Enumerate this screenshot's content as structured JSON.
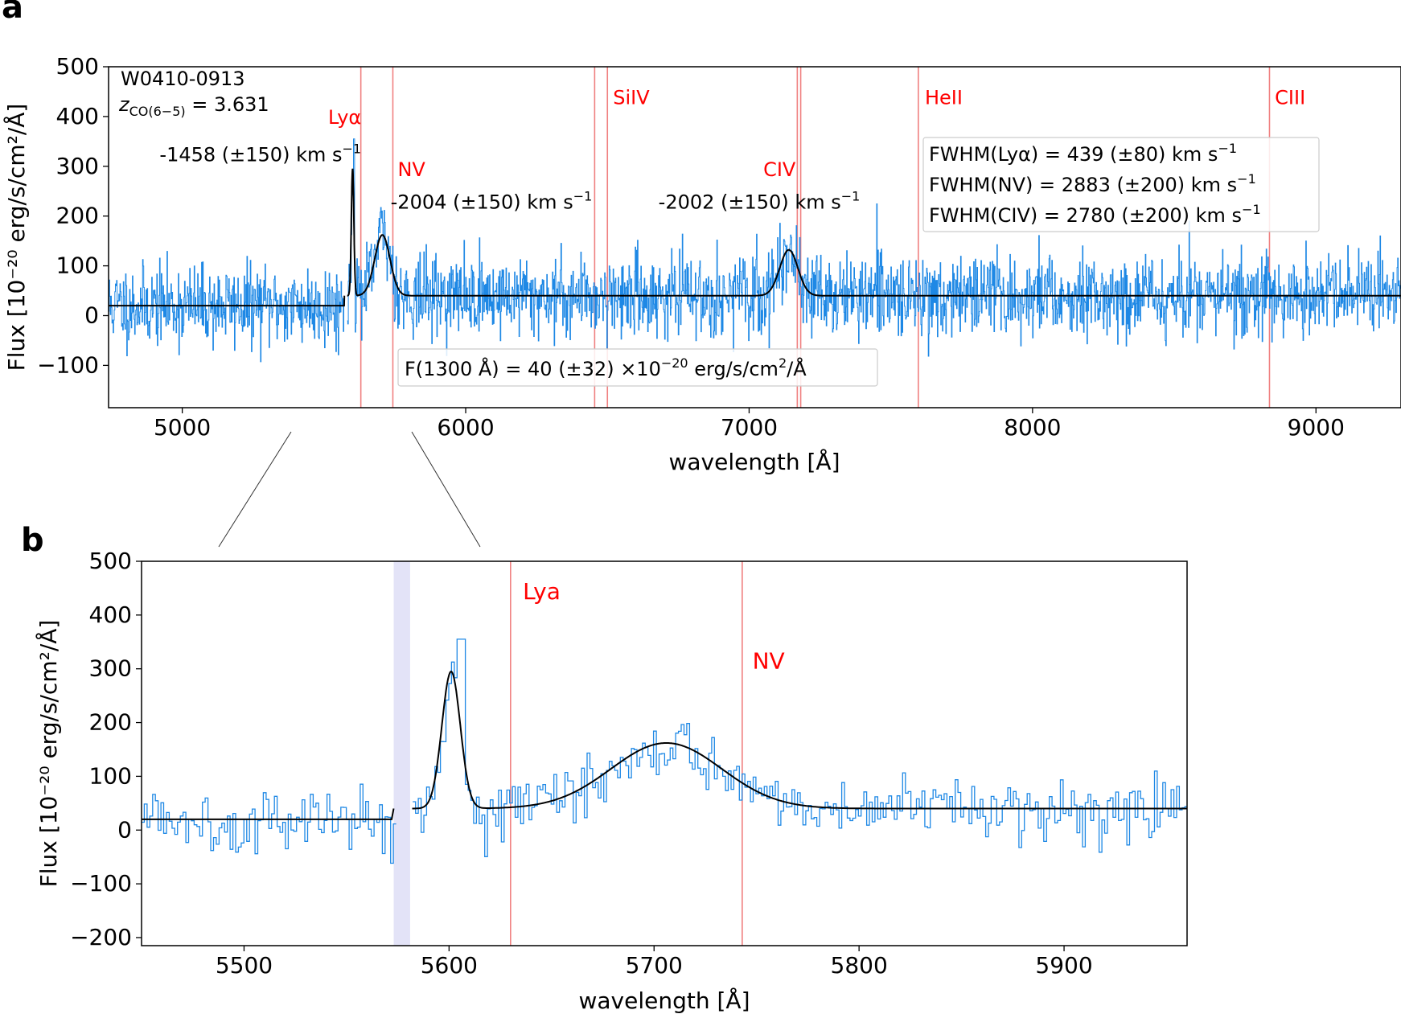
{
  "panels": [
    {
      "letter": "a",
      "type": "line",
      "xlabel": "wavelength [Å]",
      "ylabel": "Flux [10⁻²⁰ erg/s/cm²/Å]",
      "xlim": [
        4740,
        9300
      ],
      "ylim": [
        -185,
        500
      ],
      "xticks": [
        5000,
        6000,
        7000,
        8000,
        9000
      ],
      "yticks": [
        -100,
        0,
        100,
        200,
        300,
        400,
        500
      ],
      "source_label": "W0410-0913",
      "redshift_label": "z",
      "redshift_subscript": "CO(6−5)",
      "redshift_value": " = 3.631",
      "line_markers": [
        {
          "name": "Lyα",
          "x": 5630
        },
        {
          "name": "NV",
          "x": 5743
        },
        {
          "name": "SiIV",
          "x": 6455
        },
        {
          "name": "SiIV-2",
          "x": 6500
        },
        {
          "name": "CIV",
          "x": 7170
        },
        {
          "name": "CIV-2",
          "x": 7182
        },
        {
          "name": "HeII",
          "x": 7597
        },
        {
          "name": "CIII",
          "x": 8836
        }
      ],
      "marker_labels": [
        {
          "text": "Lyα",
          "x": 5630,
          "y": 385
        },
        {
          "text": "NV",
          "x": 5760,
          "y": 280
        },
        {
          "text": "SiIV",
          "x": 6520,
          "y": 425
        },
        {
          "text": "CIV",
          "x": 7050,
          "y": 280
        },
        {
          "text": "HeII",
          "x": 7620,
          "y": 425
        },
        {
          "text": "CIII",
          "x": 8855,
          "y": 425
        }
      ],
      "velocity_labels": [
        {
          "text": "-1458 (±150) km s",
          "sup": "−1",
          "x": 4920,
          "y": 310
        },
        {
          "text": "-2004 (±150) km s",
          "sup": "−1",
          "x": 5735,
          "y": 215
        },
        {
          "text": "-2002 (±150) km s",
          "sup": "−1",
          "x": 6680,
          "y": 215
        }
      ],
      "fwhm_box": [
        {
          "text": "FWHM(Lyα) = 439 (±80) km s",
          "sup": "−1"
        },
        {
          "text": "FWHM(NV) = 2883 (±200) km s",
          "sup": "−1"
        },
        {
          "text": "FWHM(CIV) = 2780 (±200) km s",
          "sup": "−1"
        }
      ],
      "flux_box": {
        "prefix": "F(1300 Å) = 40 (±32) ×10",
        "exp": "−20",
        "suffix": " erg/s/cm",
        "sq": "2",
        "end": "/Å"
      },
      "model": {
        "continuum_blue": 20,
        "continuum_red": 40,
        "gap": [
          5572,
          5582
        ],
        "components": [
          {
            "center": 5601,
            "amplitude": 255,
            "sigma": 4.5
          },
          {
            "center": 5706,
            "amplitude": 122,
            "sigma": 27
          },
          {
            "center": 7140,
            "amplitude": 92,
            "sigma": 32
          }
        ]
      },
      "noise": {
        "sigma": 40,
        "seed": 11
      }
    },
    {
      "letter": "b",
      "type": "line",
      "xlabel": "wavelength [Å]",
      "ylabel": "Flux [10⁻²⁰ erg/s/cm²/Å]",
      "xlim": [
        5450,
        5960
      ],
      "ylim": [
        -215,
        500
      ],
      "xticks": [
        5500,
        5600,
        5700,
        5800,
        5900
      ],
      "yticks": [
        -200,
        -100,
        0,
        100,
        200,
        300,
        400,
        500
      ],
      "shaded_band": [
        5573,
        5581
      ],
      "line_markers": [
        {
          "name": "Lya",
          "x": 5630
        },
        {
          "name": "NV",
          "x": 5743
        }
      ],
      "marker_labels": [
        {
          "text": "Lya",
          "x": 5636,
          "y": 430
        },
        {
          "text": "NV",
          "x": 5748,
          "y": 300
        }
      ],
      "model": {
        "continuum_blue": 20,
        "continuum_red": 40,
        "gap": [
          5573,
          5582
        ],
        "components": [
          {
            "center": 5601,
            "amplitude": 255,
            "sigma": 4.5
          },
          {
            "center": 5706,
            "amplitude": 122,
            "sigma": 27
          }
        ]
      },
      "noise": {
        "sigma": 28,
        "seed": 5
      }
    }
  ],
  "chart_data": [
    {
      "type": "line",
      "title": "a",
      "xlabel": "wavelength [Å]",
      "ylabel": "Flux [10⁻²⁰ erg/s/cm²/Å]",
      "xlim": [
        4740,
        9300
      ],
      "ylim": [
        -185,
        500
      ],
      "series": [
        {
          "name": "spectrum (noisy)",
          "x": [
            4750,
            5000,
            5500,
            5601,
            5706,
            6000,
            7140,
            8000,
            9000,
            9290
          ],
          "values": [
            20,
            20,
            20,
            300,
            200,
            40,
            150,
            40,
            40,
            40
          ]
        },
        {
          "name": "Gaussian fit",
          "x": [
            4750,
            5572,
            5582,
            5601,
            5706,
            6000,
            7140,
            9290
          ],
          "values": [
            20,
            20,
            40,
            295,
            162,
            40,
            132,
            40
          ]
        }
      ],
      "legend": "none"
    },
    {
      "type": "line",
      "title": "b",
      "xlabel": "wavelength [Å]",
      "ylabel": "Flux [10⁻²⁰ erg/s/cm²/Å]",
      "xlim": [
        5450,
        5960
      ],
      "ylim": [
        -215,
        500
      ],
      "series": [
        {
          "name": "spectrum (noisy)",
          "x": [
            5450,
            5500,
            5572,
            5601,
            5605,
            5706,
            5800,
            5900,
            5960
          ],
          "values": [
            20,
            20,
            20,
            300,
            360,
            200,
            40,
            40,
            40
          ]
        },
        {
          "name": "Gaussian fit",
          "x": [
            5450,
            5573,
            5582,
            5601,
            5706,
            5800,
            5960
          ],
          "values": [
            20,
            20,
            40,
            295,
            162,
            40,
            40
          ]
        }
      ],
      "legend": "none"
    }
  ],
  "colors": {
    "spectrum": "#1e88e5",
    "fit": "#000000",
    "marker": "#f08080",
    "marker_text": "#ff0000",
    "band": "#e3e3f7",
    "axes": "#000000",
    "box_edge": "#cccccc"
  }
}
